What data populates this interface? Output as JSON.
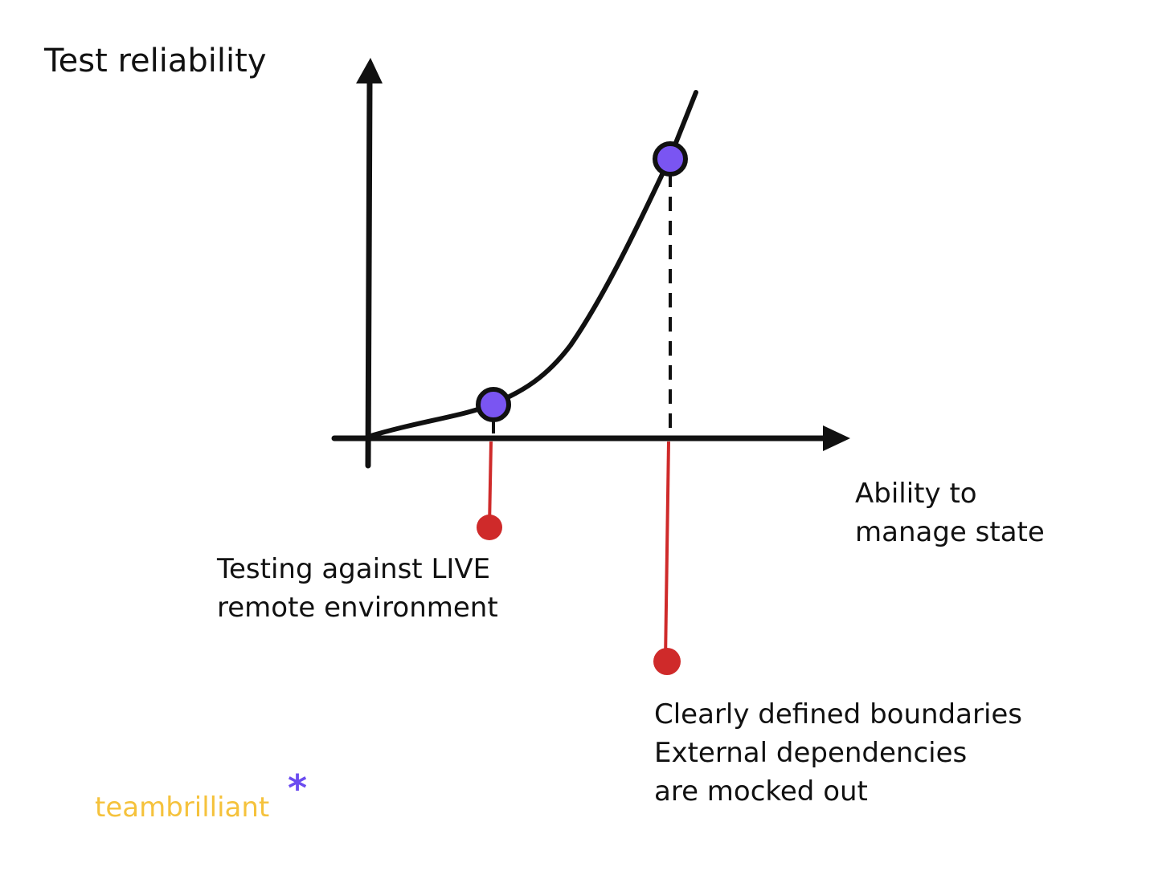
{
  "labels": {
    "y_axis": "Test reliability",
    "x_axis_line1": "Ability to",
    "x_axis_line2": "manage state"
  },
  "annotations": {
    "left_line1": "Testing against LIVE",
    "left_line2": "remote environment",
    "right_line1": "Clearly defined boundaries",
    "right_line2": "External dependencies",
    "right_line3": "are mocked out"
  },
  "brand": {
    "name": "teambrilliant",
    "mark": "*"
  },
  "colors": {
    "line": "#111111",
    "point_fill": "#7a55f2",
    "annotation": "#cf2a2a",
    "brand_text": "#f5c23c",
    "brand_mark": "#6b4cf0"
  }
}
